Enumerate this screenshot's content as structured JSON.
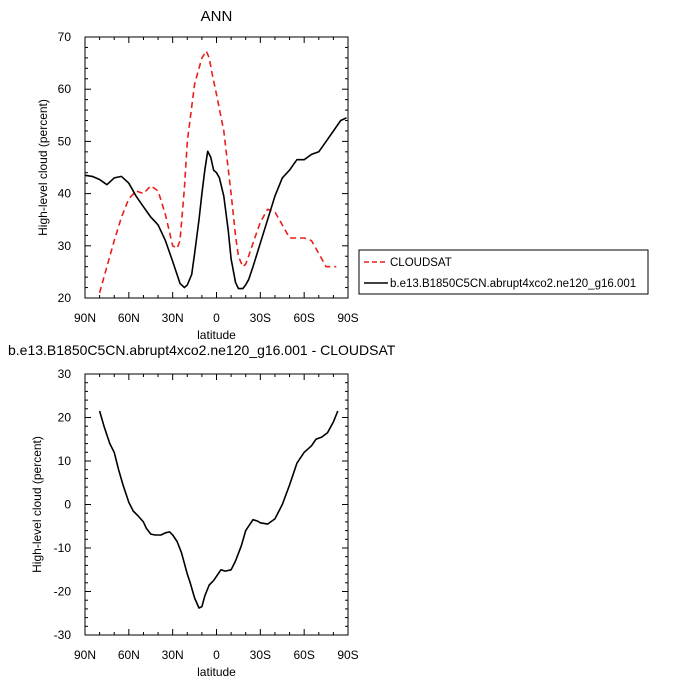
{
  "chart_data": [
    {
      "type": "line",
      "title": "ANN",
      "xlabel": "latitude",
      "ylabel": "High-level cloud (percent)",
      "xlim": [
        90,
        -90
      ],
      "ylim": [
        20,
        70
      ],
      "xtick_values": [
        90,
        60,
        30,
        0,
        -30,
        -60,
        -90
      ],
      "xtick_labels": [
        "90N",
        "60N",
        "30N",
        "0",
        "30S",
        "60S",
        "90S"
      ],
      "ytick_values": [
        20,
        30,
        40,
        50,
        60,
        70
      ],
      "ytick_labels": [
        "20",
        "30",
        "40",
        "50",
        "60",
        "70"
      ],
      "legend_position": "right",
      "series": [
        {
          "name": "CLOUDSAT",
          "color": "#e8201c",
          "dash": "dashed",
          "x": [
            80,
            75,
            70,
            65,
            60,
            55,
            50,
            45,
            40,
            35,
            30,
            27,
            25,
            22,
            20,
            15,
            10,
            7,
            5,
            3,
            0,
            -5,
            -10,
            -13,
            -15,
            -18,
            -20,
            -22,
            -25,
            -30,
            -35,
            -40,
            -45,
            -50,
            -55,
            -60,
            -65,
            -70,
            -75,
            -80,
            -82
          ],
          "y": [
            21,
            26,
            31,
            35.5,
            39,
            40.5,
            40,
            41.5,
            40.5,
            36,
            30,
            29.5,
            31,
            41,
            50,
            61,
            66,
            67.3,
            66,
            63,
            59,
            52,
            40,
            32,
            28,
            26,
            26.5,
            28,
            30.5,
            34.5,
            37,
            36.5,
            34,
            31.5,
            31.5,
            31.5,
            31,
            28.5,
            26,
            26,
            26
          ]
        },
        {
          "name": "b.e13.B1850C5CN.abrupt4xco2.ne120_g16.001",
          "color": "#000000",
          "dash": "solid",
          "x": [
            90,
            85,
            80,
            75,
            70,
            65,
            60,
            55,
            50,
            45,
            40,
            35,
            30,
            25,
            22,
            20,
            17,
            15,
            12,
            10,
            8,
            6,
            4,
            2,
            0,
            -2,
            -5,
            -8,
            -10,
            -13,
            -15,
            -18,
            -20,
            -22,
            -25,
            -30,
            -35,
            -40,
            -45,
            -50,
            -55,
            -60,
            -65,
            -70,
            -75,
            -80,
            -85,
            -89
          ],
          "y": [
            43.5,
            43.3,
            42.7,
            41.7,
            43,
            43.3,
            42,
            39.5,
            37.5,
            35.5,
            34,
            31,
            27,
            22.8,
            22,
            22.5,
            24.5,
            28.5,
            35,
            40,
            44.5,
            48.1,
            47,
            44.5,
            44,
            43,
            39.5,
            33,
            27.5,
            23,
            21.8,
            21.8,
            22.5,
            23.5,
            26,
            30.5,
            35,
            39.5,
            43,
            44.5,
            46.5,
            46.5,
            47.5,
            48,
            50,
            52,
            54,
            54.5
          ]
        }
      ]
    },
    {
      "type": "line",
      "title": "b.e13.B1850C5CN.abrupt4xco2.ne120_g16.001 - CLOUDSAT",
      "xlabel": "latitude",
      "ylabel": "High-level cloud (percent)",
      "xlim": [
        90,
        -90
      ],
      "ylim": [
        -30,
        30
      ],
      "xtick_values": [
        90,
        60,
        30,
        0,
        -30,
        -60,
        -90
      ],
      "xtick_labels": [
        "90N",
        "60N",
        "30N",
        "0",
        "30S",
        "60S",
        "90S"
      ],
      "ytick_values": [
        -30,
        -20,
        -10,
        0,
        10,
        20,
        30
      ],
      "ytick_labels": [
        "-30",
        "-20",
        "-10",
        "0",
        "10",
        "20",
        "30"
      ],
      "series": [
        {
          "color": "#000000",
          "dash": "solid",
          "x": [
            80,
            77,
            73,
            70,
            67,
            64,
            60,
            57,
            54,
            50,
            48,
            45,
            42,
            38,
            35,
            32,
            30,
            27,
            24,
            20,
            18,
            15,
            12,
            10,
            8,
            5,
            2,
            0,
            -3,
            -6,
            -10,
            -13,
            -17,
            -20,
            -25,
            -28,
            -30,
            -35,
            -40,
            -45,
            -50,
            -55,
            -60,
            -65,
            -68,
            -72,
            -76,
            -80,
            -83
          ],
          "y": [
            21.5,
            18,
            14,
            12,
            8,
            4.5,
            0.5,
            -1.5,
            -2.5,
            -4,
            -5.5,
            -6.8,
            -7,
            -7,
            -6.5,
            -6.3,
            -7,
            -8.5,
            -11,
            -16,
            -18,
            -21.5,
            -23.8,
            -23.5,
            -21,
            -18.5,
            -17.5,
            -16.5,
            -15,
            -15.3,
            -15,
            -13,
            -9.5,
            -6,
            -3.5,
            -3.8,
            -4.2,
            -4.5,
            -3.3,
            0,
            4.5,
            9.5,
            12,
            13.5,
            15,
            15.5,
            16.5,
            19,
            21.5
          ]
        }
      ]
    }
  ]
}
